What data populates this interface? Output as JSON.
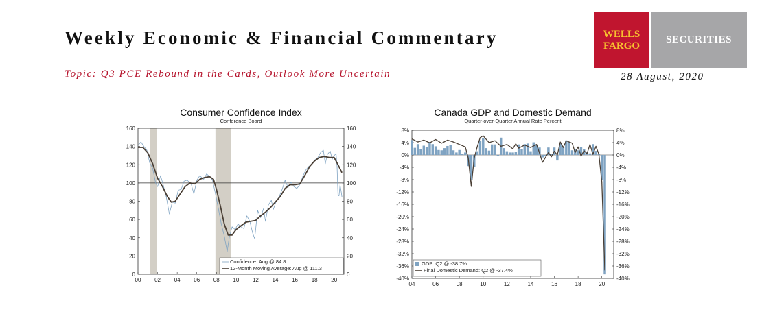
{
  "header": {
    "title": "Weekly Economic & Financial Commentary",
    "topic": "Topic: Q3 PCE Rebound in the Cards, Outlook More Uncertain",
    "date": "28 August, 2020",
    "logo": {
      "line1": "WELLS",
      "line2": "FARGO",
      "securities": "SECURITIES",
      "red": "#c0152f",
      "gold": "#f7c22e",
      "grey": "#a6a6a8"
    }
  },
  "chart_data": [
    {
      "type": "line",
      "title": "Consumer Confidence Index",
      "subtitle": "Conference Board",
      "xlim": [
        2000,
        2021
      ],
      "ylim": [
        0,
        160
      ],
      "x_ticks": [
        "00",
        "02",
        "04",
        "06",
        "08",
        "10",
        "12",
        "14",
        "16",
        "18",
        "20"
      ],
      "y_ticks_left": [
        "160",
        "140",
        "120",
        "100",
        "80",
        "60",
        "40",
        "20",
        "0"
      ],
      "y_ticks_right": [
        "160",
        "140",
        "120",
        "100",
        "80",
        "60",
        "40",
        "20",
        "0"
      ],
      "reference_line": 100,
      "recessions": [
        [
          2001.2,
          2001.9
        ],
        [
          2007.9,
          2009.5
        ]
      ],
      "legend_position": "bottom-right",
      "series": [
        {
          "name": "Confidence: Aug @ 84.8",
          "style": "thin",
          "color": "#7fa3c2",
          "points": [
            [
              2000,
              141
            ],
            [
              2000.3,
              145
            ],
            [
              2000.6,
              140
            ],
            [
              2000.9,
              136
            ],
            [
              2001.2,
              122
            ],
            [
              2001.5,
              116
            ],
            [
              2001.8,
              100
            ],
            [
              2002.0,
              96
            ],
            [
              2002.3,
              108
            ],
            [
              2002.6,
              97
            ],
            [
              2002.9,
              84
            ],
            [
              2003.2,
              66
            ],
            [
              2003.5,
              79
            ],
            [
              2003.8,
              78
            ],
            [
              2004.1,
              92
            ],
            [
              2004.4,
              93
            ],
            [
              2004.7,
              102
            ],
            [
              2005.0,
              103
            ],
            [
              2005.4,
              100
            ],
            [
              2005.7,
              88
            ],
            [
              2006.0,
              103
            ],
            [
              2006.3,
              108
            ],
            [
              2006.7,
              104
            ],
            [
              2007.0,
              110
            ],
            [
              2007.3,
              107
            ],
            [
              2007.6,
              103
            ],
            [
              2007.9,
              88
            ],
            [
              2008.2,
              72
            ],
            [
              2008.5,
              55
            ],
            [
              2008.8,
              42
            ],
            [
              2009.0,
              30
            ],
            [
              2009.1,
              25
            ],
            [
              2009.3,
              40
            ],
            [
              2009.6,
              52
            ],
            [
              2009.9,
              49
            ],
            [
              2010.2,
              55
            ],
            [
              2010.5,
              52
            ],
            [
              2010.8,
              50
            ],
            [
              2011.1,
              64
            ],
            [
              2011.4,
              58
            ],
            [
              2011.7,
              45
            ],
            [
              2011.9,
              39
            ],
            [
              2012.2,
              70
            ],
            [
              2012.5,
              62
            ],
            [
              2012.8,
              72
            ],
            [
              2013.0,
              58
            ],
            [
              2013.3,
              76
            ],
            [
              2013.6,
              81
            ],
            [
              2013.8,
              71
            ],
            [
              2014.1,
              80
            ],
            [
              2014.4,
              85
            ],
            [
              2014.7,
              93
            ],
            [
              2015.0,
              103
            ],
            [
              2015.3,
              95
            ],
            [
              2015.6,
              101
            ],
            [
              2015.9,
              96
            ],
            [
              2016.2,
              94
            ],
            [
              2016.5,
              98
            ],
            [
              2016.8,
              107
            ],
            [
              2017.1,
              114
            ],
            [
              2017.4,
              118
            ],
            [
              2017.7,
              120
            ],
            [
              2018.0,
              125
            ],
            [
              2018.3,
              127
            ],
            [
              2018.6,
              133
            ],
            [
              2018.9,
              136
            ],
            [
              2019.1,
              121
            ],
            [
              2019.3,
              131
            ],
            [
              2019.6,
              135
            ],
            [
              2019.8,
              126
            ],
            [
              2020.0,
              130
            ],
            [
              2020.2,
              132
            ],
            [
              2020.3,
              118
            ],
            [
              2020.4,
              86
            ],
            [
              2020.5,
              86
            ],
            [
              2020.6,
              98
            ],
            [
              2020.7,
              92
            ],
            [
              2020.8,
              84.8
            ]
          ]
        },
        {
          "name": "12-Month Moving Average: Aug @ 111.3",
          "style": "thick",
          "color": "#4a3f35",
          "points": [
            [
              2000,
              139
            ],
            [
              2000.5,
              139
            ],
            [
              2001.0,
              133
            ],
            [
              2001.5,
              121
            ],
            [
              2002.0,
              105
            ],
            [
              2002.5,
              96
            ],
            [
              2003.0,
              85
            ],
            [
              2003.4,
              79
            ],
            [
              2003.8,
              80
            ],
            [
              2004.3,
              88
            ],
            [
              2004.8,
              96
            ],
            [
              2005.3,
              100
            ],
            [
              2005.8,
              99
            ],
            [
              2006.3,
              104
            ],
            [
              2006.8,
              106
            ],
            [
              2007.3,
              107
            ],
            [
              2007.7,
              104
            ],
            [
              2008.0,
              93
            ],
            [
              2008.4,
              75
            ],
            [
              2008.8,
              55
            ],
            [
              2009.2,
              43
            ],
            [
              2009.6,
              43
            ],
            [
              2010.0,
              49
            ],
            [
              2010.5,
              53
            ],
            [
              2011.0,
              57
            ],
            [
              2011.5,
              58
            ],
            [
              2012.0,
              59
            ],
            [
              2012.5,
              64
            ],
            [
              2013.0,
              68
            ],
            [
              2013.5,
              73
            ],
            [
              2014.0,
              79
            ],
            [
              2014.5,
              85
            ],
            [
              2015.0,
              94
            ],
            [
              2015.5,
              98
            ],
            [
              2016.0,
              98
            ],
            [
              2016.5,
              99
            ],
            [
              2017.0,
              108
            ],
            [
              2017.5,
              118
            ],
            [
              2018.0,
              124
            ],
            [
              2018.5,
              128
            ],
            [
              2019.0,
              129
            ],
            [
              2019.5,
              128
            ],
            [
              2020.0,
              128
            ],
            [
              2020.4,
              120
            ],
            [
              2020.8,
              111.3
            ]
          ]
        }
      ]
    },
    {
      "type": "bar",
      "title": "Canada GDP and Domestic Demand",
      "subtitle": "Quarter-over-Quarter Annual Rate Percent",
      "xlim": [
        2004,
        2021
      ],
      "ylim": [
        -40,
        8
      ],
      "x_ticks": [
        "04",
        "06",
        "08",
        "10",
        "12",
        "14",
        "16",
        "18",
        "20"
      ],
      "y_ticks_left": [
        "8%",
        "4%",
        "0%",
        "-4%",
        "-8%",
        "-12%",
        "-16%",
        "-20%",
        "-24%",
        "-28%",
        "-32%",
        "-36%",
        "-40%"
      ],
      "y_ticks_right": [
        "8%",
        "4%",
        "0%",
        "-4%",
        "-8%",
        "-12%",
        "-16%",
        "-20%",
        "-24%",
        "-28%",
        "-32%",
        "-36%",
        "-40%"
      ],
      "legend_position": "bottom-left",
      "series": [
        {
          "name": "GDP: Q2 @ -38.7%",
          "style": "bar",
          "color": "#7fa3c2",
          "points": [
            [
              2004.0,
              4.8
            ],
            [
              2004.25,
              2.3
            ],
            [
              2004.5,
              3.5
            ],
            [
              2004.75,
              1.8
            ],
            [
              2005.0,
              3.0
            ],
            [
              2005.25,
              2.5
            ],
            [
              2005.5,
              4.2
            ],
            [
              2005.75,
              3.5
            ],
            [
              2006.0,
              2.8
            ],
            [
              2006.25,
              1.6
            ],
            [
              2006.5,
              1.5
            ],
            [
              2006.75,
              2.2
            ],
            [
              2007.0,
              2.9
            ],
            [
              2007.25,
              3.2
            ],
            [
              2007.5,
              1.5
            ],
            [
              2007.75,
              0.8
            ],
            [
              2008.0,
              1.6
            ],
            [
              2008.25,
              0.4
            ],
            [
              2008.5,
              0.8
            ],
            [
              2008.75,
              -3.6
            ],
            [
              2009.0,
              -8.0
            ],
            [
              2009.25,
              -3.8
            ],
            [
              2009.5,
              1.2
            ],
            [
              2009.75,
              4.7
            ],
            [
              2010.0,
              5.5
            ],
            [
              2010.25,
              2.2
            ],
            [
              2010.5,
              1.4
            ],
            [
              2010.75,
              3.4
            ],
            [
              2011.0,
              3.4
            ],
            [
              2011.25,
              -0.4
            ],
            [
              2011.5,
              5.6
            ],
            [
              2011.75,
              2.2
            ],
            [
              2012.0,
              1.2
            ],
            [
              2012.25,
              0.8
            ],
            [
              2012.5,
              0.8
            ],
            [
              2012.75,
              1.0
            ],
            [
              2013.0,
              3.4
            ],
            [
              2013.25,
              2.0
            ],
            [
              2013.5,
              3.5
            ],
            [
              2013.75,
              3.7
            ],
            [
              2014.0,
              1.2
            ],
            [
              2014.25,
              4.1
            ],
            [
              2014.5,
              3.2
            ],
            [
              2014.75,
              2.4
            ],
            [
              2015.0,
              -0.8
            ],
            [
              2015.25,
              -0.3
            ],
            [
              2015.5,
              2.4
            ],
            [
              2015.75,
              0.4
            ],
            [
              2016.0,
              2.4
            ],
            [
              2016.25,
              -1.8
            ],
            [
              2016.5,
              4.0
            ],
            [
              2016.75,
              2.6
            ],
            [
              2017.0,
              4.7
            ],
            [
              2017.25,
              4.2
            ],
            [
              2017.5,
              1.5
            ],
            [
              2017.75,
              1.8
            ],
            [
              2018.0,
              1.5
            ],
            [
              2018.25,
              2.6
            ],
            [
              2018.5,
              2.0
            ],
            [
              2018.75,
              1.0
            ],
            [
              2019.0,
              0.5
            ],
            [
              2019.25,
              3.5
            ],
            [
              2019.5,
              1.3
            ],
            [
              2019.75,
              0.4
            ],
            [
              2020.0,
              -8.2
            ],
            [
              2020.25,
              -38.7
            ]
          ]
        },
        {
          "name": "Final Domestic Demand: Q2 @ -37.4%",
          "style": "line",
          "color": "#4a3f35",
          "points": [
            [
              2004.0,
              5.2
            ],
            [
              2004.5,
              4.2
            ],
            [
              2005.0,
              4.8
            ],
            [
              2005.5,
              3.9
            ],
            [
              2006.0,
              5.0
            ],
            [
              2006.5,
              3.8
            ],
            [
              2007.0,
              4.8
            ],
            [
              2007.5,
              4.2
            ],
            [
              2008.0,
              3.4
            ],
            [
              2008.5,
              2.6
            ],
            [
              2008.75,
              -1.0
            ],
            [
              2009.0,
              -10.2
            ],
            [
              2009.25,
              -1.0
            ],
            [
              2009.5,
              2.6
            ],
            [
              2009.75,
              5.6
            ],
            [
              2010.0,
              6.2
            ],
            [
              2010.5,
              4.0
            ],
            [
              2011.0,
              4.6
            ],
            [
              2011.5,
              2.8
            ],
            [
              2012.0,
              3.4
            ],
            [
              2012.5,
              2.0
            ],
            [
              2012.75,
              3.6
            ],
            [
              2013.0,
              2.2
            ],
            [
              2013.5,
              3.2
            ],
            [
              2014.0,
              2.4
            ],
            [
              2014.5,
              3.4
            ],
            [
              2014.75,
              0.6
            ],
            [
              2015.0,
              -2.4
            ],
            [
              2015.5,
              0.8
            ],
            [
              2015.75,
              -0.6
            ],
            [
              2016.0,
              1.2
            ],
            [
              2016.25,
              0.0
            ],
            [
              2016.5,
              4.2
            ],
            [
              2016.75,
              2.4
            ],
            [
              2017.0,
              4.6
            ],
            [
              2017.5,
              3.8
            ],
            [
              2017.75,
              0.8
            ],
            [
              2018.0,
              2.6
            ],
            [
              2018.25,
              -0.4
            ],
            [
              2018.5,
              1.4
            ],
            [
              2018.75,
              0.4
            ],
            [
              2019.0,
              3.4
            ],
            [
              2019.25,
              0.2
            ],
            [
              2019.5,
              2.8
            ],
            [
              2019.75,
              0.2
            ],
            [
              2020.0,
              -8.8
            ],
            [
              2020.25,
              -37.4
            ]
          ]
        }
      ]
    }
  ]
}
